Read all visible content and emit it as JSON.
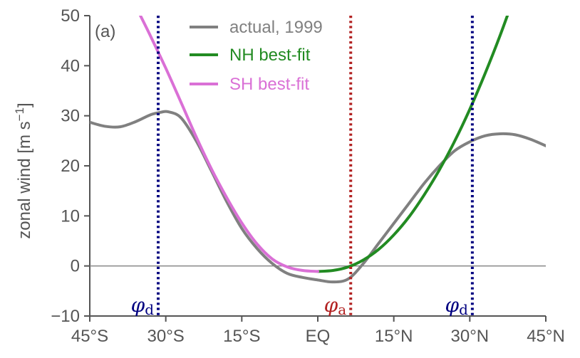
{
  "chart_data": {
    "type": "line",
    "panel_label": "(a)",
    "xlabel": "",
    "ylabel": "zonal wind [m s",
    "ylabel_sup": "−1",
    "ylabel_end": "]",
    "xlim": [
      -45,
      45
    ],
    "ylim": [
      -10,
      50
    ],
    "x_ticks": [
      -45,
      -30,
      -15,
      0,
      15,
      30,
      45
    ],
    "x_tick_labels": [
      "45°S",
      "30°S",
      "15°S",
      "EQ",
      "15°N",
      "30°N",
      "45°N"
    ],
    "y_ticks": [
      -10,
      0,
      10,
      20,
      30,
      40,
      50
    ],
    "y_tick_labels": [
      "−10",
      "0",
      "10",
      "20",
      "30",
      "40",
      "50"
    ],
    "series": [
      {
        "name": "actual, 1999",
        "color": "#808080",
        "x": [
          -45,
          -42,
          -39,
          -36,
          -33,
          -31,
          -29.5,
          -27,
          -24,
          -21,
          -18,
          -15,
          -12,
          -9,
          -6,
          -3,
          0,
          3,
          6,
          9,
          12,
          15,
          18,
          21,
          24,
          27,
          30,
          33,
          36,
          39,
          42,
          45
        ],
        "y": [
          28.7,
          27.9,
          27.8,
          28.8,
          30.2,
          30.7,
          30.8,
          29.6,
          25.0,
          19.0,
          12.9,
          7.5,
          3.5,
          0.5,
          -1.5,
          -2.3,
          -2.8,
          -3.2,
          -2.6,
          0.5,
          4.5,
          8.5,
          12.5,
          16.5,
          20.0,
          23.0,
          24.8,
          26.0,
          26.4,
          26.2,
          25.3,
          24.0
        ]
      },
      {
        "name": "NH best-fit",
        "color": "#228b22",
        "x": [
          0,
          3,
          6,
          9,
          12,
          15,
          18,
          21,
          24,
          27,
          30,
          33,
          36,
          39,
          40.5
        ],
        "y": [
          -1.1,
          -0.9,
          -0.2,
          1.2,
          3.3,
          6.2,
          9.8,
          14.2,
          19.2,
          24.9,
          31.3,
          38.4,
          46.1,
          54.5,
          59.0
        ]
      },
      {
        "name": "SH best-fit",
        "color": "#da70d6",
        "x": [
          -35,
          -33,
          -30,
          -27,
          -24,
          -21,
          -18,
          -15,
          -12,
          -9,
          -6,
          -3,
          0
        ],
        "y": [
          50,
          45.9,
          39.5,
          32.7,
          25.8,
          19.4,
          13.7,
          8.6,
          4.4,
          1.4,
          -0.2,
          -0.9,
          -1.1
        ]
      }
    ],
    "vertical_lines": [
      {
        "x": -31.5,
        "color": "#000080",
        "style": "dotted",
        "label": "φ",
        "sub": "d"
      },
      {
        "x": 6.5,
        "color": "#b22222",
        "style": "dotted",
        "label": "φ",
        "sub": "a"
      },
      {
        "x": 30.5,
        "color": "#000080",
        "style": "dotted",
        "label": "φ",
        "sub": "d"
      }
    ],
    "hline": {
      "y": 0,
      "color": "#808080"
    },
    "legend": {
      "position": "top-center",
      "entries": [
        "actual, 1999",
        "NH best-fit",
        "SH best-fit"
      ],
      "text_colors": [
        "#808080",
        "#228b22",
        "#da70d6"
      ]
    }
  }
}
